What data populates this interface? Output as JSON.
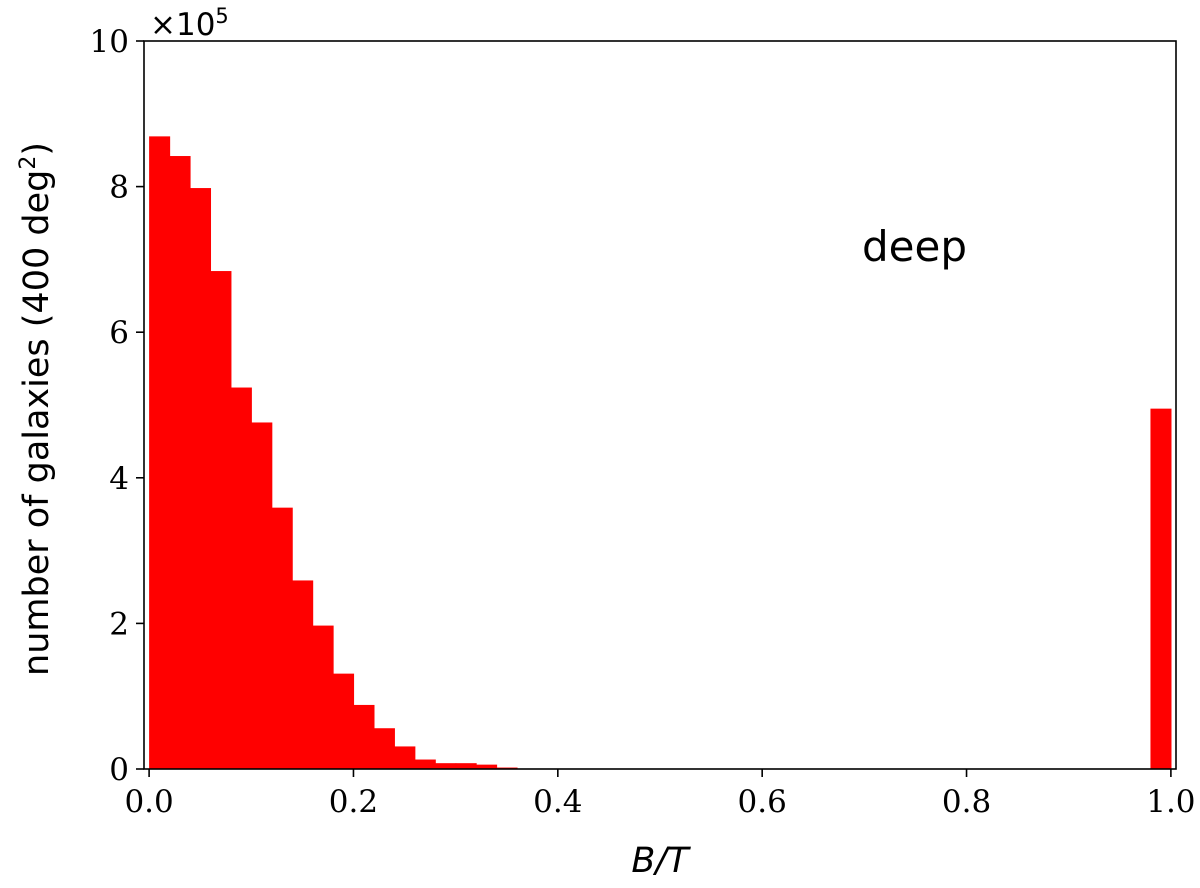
{
  "chart_data": {
    "type": "bar",
    "histogram": true,
    "xlabel_italic": "B/T",
    "ylabel_main": "number of galaxies (400 deg",
    "ylabel_sup": "2",
    "ylabel_close": ")",
    "annotation": "deep",
    "y_multiplier_base": "×10",
    "y_multiplier_exp": "5",
    "xlim": [
      -0.005,
      1.005
    ],
    "ylim": [
      0,
      10
    ],
    "y_scale_factor": 100000,
    "x_ticks": [
      0.0,
      0.2,
      0.4,
      0.6,
      0.8,
      1.0
    ],
    "x_tick_labels": [
      "0.0",
      "0.2",
      "0.4",
      "0.6",
      "0.8",
      "1.0"
    ],
    "y_ticks": [
      0,
      2,
      4,
      6,
      8,
      10
    ],
    "y_tick_labels": [
      "0",
      "2",
      "4",
      "6",
      "8",
      "10"
    ],
    "bin_width": 0.02,
    "bin_starts": [
      0.0,
      0.02,
      0.04,
      0.06,
      0.08,
      0.1,
      0.12,
      0.14,
      0.16,
      0.18,
      0.2,
      0.22,
      0.24,
      0.26,
      0.28,
      0.3,
      0.32,
      0.34,
      0.98
    ],
    "values": [
      8.69,
      8.42,
      7.98,
      6.84,
      5.24,
      4.76,
      3.59,
      2.59,
      1.97,
      1.31,
      0.88,
      0.56,
      0.31,
      0.13,
      0.08,
      0.08,
      0.06,
      0.02,
      4.95
    ],
    "bar_color": "#ff0000",
    "grid": false,
    "legend": "none"
  }
}
